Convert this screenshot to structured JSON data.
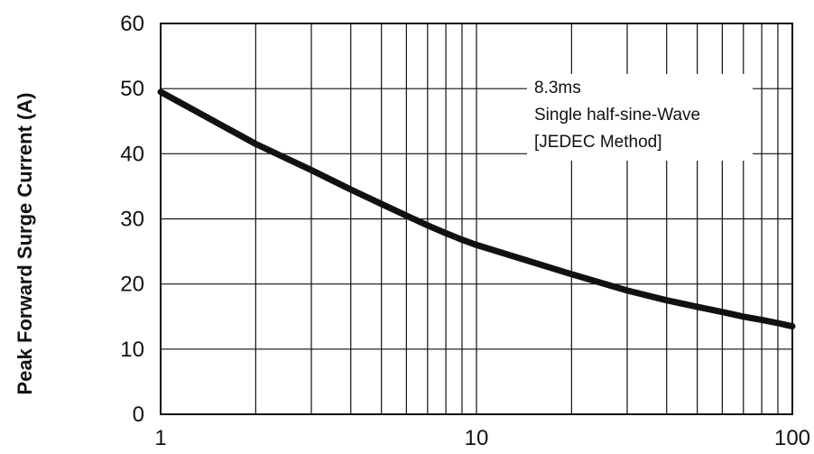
{
  "chart_data": {
    "type": "line",
    "title": "",
    "xlabel": "",
    "ylabel": "Peak Forward Surge Current (A)",
    "x_scale": "log",
    "xlim": [
      1,
      100
    ],
    "ylim": [
      0,
      60
    ],
    "x_ticks": [
      "1",
      "10",
      "100"
    ],
    "y_ticks": [
      "0",
      "10",
      "20",
      "30",
      "40",
      "50",
      "60"
    ],
    "grid": true,
    "annotation": [
      "8.3ms",
      "Single half-sine-Wave",
      "[JEDEC Method]"
    ],
    "series": [
      {
        "color": "#111111",
        "x": [
          1,
          2,
          3,
          4,
          5,
          6,
          7,
          8,
          9,
          10,
          20,
          30,
          40,
          50,
          60,
          70,
          80,
          90,
          100
        ],
        "y": [
          49.5,
          41.5,
          37.5,
          34.5,
          32.3,
          30.5,
          29.0,
          27.8,
          26.8,
          26.0,
          21.5,
          19.0,
          17.5,
          16.5,
          15.7,
          15.0,
          14.5,
          14.0,
          13.5
        ]
      }
    ]
  }
}
